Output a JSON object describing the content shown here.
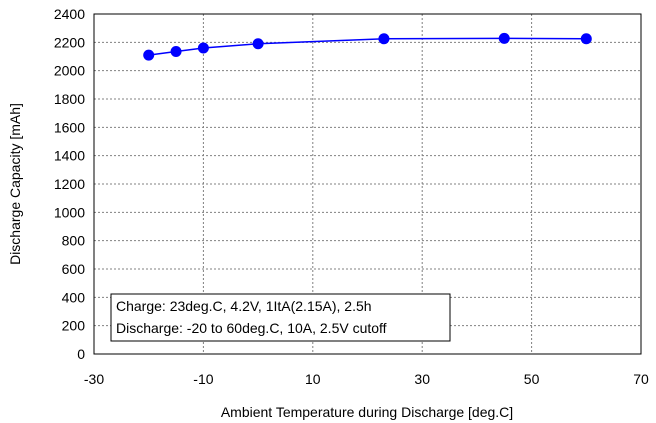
{
  "chart_data": {
    "type": "line",
    "xlabel": "Ambient Temperature during Discharge [deg.C]",
    "ylabel": "Discharge Capacity [mAh]",
    "xlim": [
      -30,
      70
    ],
    "ylim": [
      0,
      2400
    ],
    "x_ticks": [
      -30,
      -10,
      10,
      30,
      50,
      70
    ],
    "y_ticks": [
      0,
      200,
      400,
      600,
      800,
      1000,
      1200,
      1400,
      1600,
      1800,
      2000,
      2200,
      2400
    ],
    "grid": true,
    "series": [
      {
        "color": "#0000ff",
        "x": [
          -20,
          -15,
          -10,
          0,
          23,
          45,
          60
        ],
        "y": [
          2110,
          2135,
          2160,
          2190,
          2225,
          2228,
          2225
        ]
      }
    ],
    "annotation": {
      "lines": [
        "Charge: 23deg.C, 4.2V, 1ItA(2.15A), 2.5h",
        "Discharge: -20 to 60deg.C, 10A, 2.5V cutoff"
      ],
      "position": "bottom-left"
    }
  }
}
